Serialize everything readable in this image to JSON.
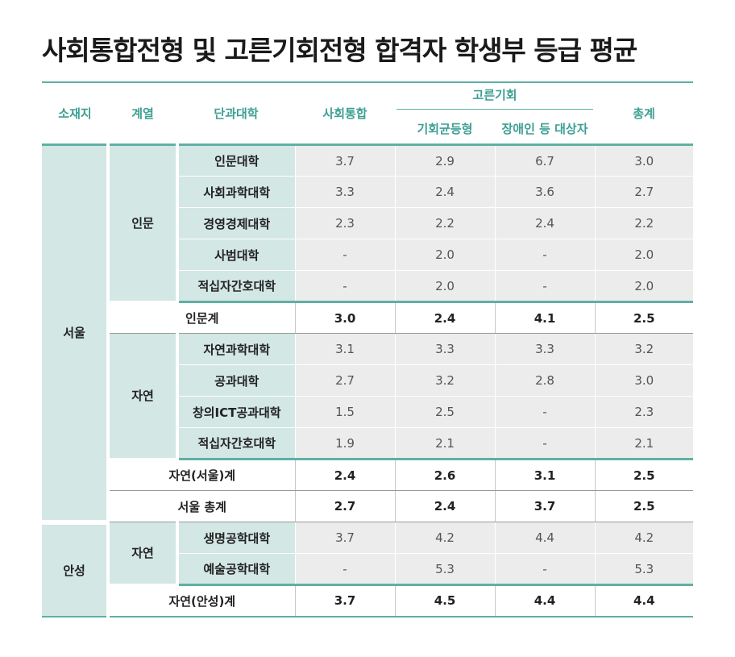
{
  "title": "사회통합전형 및 고른기회전형 합격자 학생부 등급 평균",
  "headers": {
    "campus": "소재지",
    "field": "계열",
    "college": "단과대학",
    "social": "사회통합",
    "equal_group": "고른기회",
    "equal_balance": "기회균등형",
    "disabled": "장애인 등 대상자",
    "total": "총계"
  },
  "regions": {
    "seoul": "서울",
    "anseong": "안성"
  },
  "fields": {
    "humanities": "인문",
    "science_seoul": "자연",
    "science_anseong": "자연"
  },
  "rows": [
    {
      "college": "인문대학",
      "social": "3.7",
      "balance": "2.9",
      "disabled": "6.7",
      "total": "3.0"
    },
    {
      "college": "사회과학대학",
      "social": "3.3",
      "balance": "2.4",
      "disabled": "3.6",
      "total": "2.7"
    },
    {
      "college": "경영경제대학",
      "social": "2.3",
      "balance": "2.2",
      "disabled": "2.4",
      "total": "2.2"
    },
    {
      "college": "사범대학",
      "social": "-",
      "balance": "2.0",
      "disabled": "-",
      "total": "2.0"
    },
    {
      "college": "적십자간호대학",
      "social": "-",
      "balance": "2.0",
      "disabled": "-",
      "total": "2.0"
    },
    {
      "college": "인문계",
      "social": "3.0",
      "balance": "2.4",
      "disabled": "4.1",
      "total": "2.5"
    },
    {
      "college": "자연과학대학",
      "social": "3.1",
      "balance": "3.3",
      "disabled": "3.3",
      "total": "3.2"
    },
    {
      "college": "공과대학",
      "social": "2.7",
      "balance": "3.2",
      "disabled": "2.8",
      "total": "3.0"
    },
    {
      "college": "창의ICT공과대학",
      "social": "1.5",
      "balance": "2.5",
      "disabled": "-",
      "total": "2.3"
    },
    {
      "college": "적십자간호대학",
      "social": "1.9",
      "balance": "2.1",
      "disabled": "-",
      "total": "2.1"
    },
    {
      "college": "자연(서울)계",
      "social": "2.4",
      "balance": "2.6",
      "disabled": "3.1",
      "total": "2.5"
    },
    {
      "college": "서울 총계",
      "social": "2.7",
      "balance": "2.4",
      "disabled": "3.7",
      "total": "2.5"
    },
    {
      "college": "생명공학대학",
      "social": "3.7",
      "balance": "4.2",
      "disabled": "4.4",
      "total": "4.2"
    },
    {
      "college": "예술공학대학",
      "social": "-",
      "balance": "5.3",
      "disabled": "-",
      "total": "5.3"
    },
    {
      "college": "자연(안성)계",
      "social": "3.7",
      "balance": "4.5",
      "disabled": "4.4",
      "total": "4.4"
    }
  ]
}
